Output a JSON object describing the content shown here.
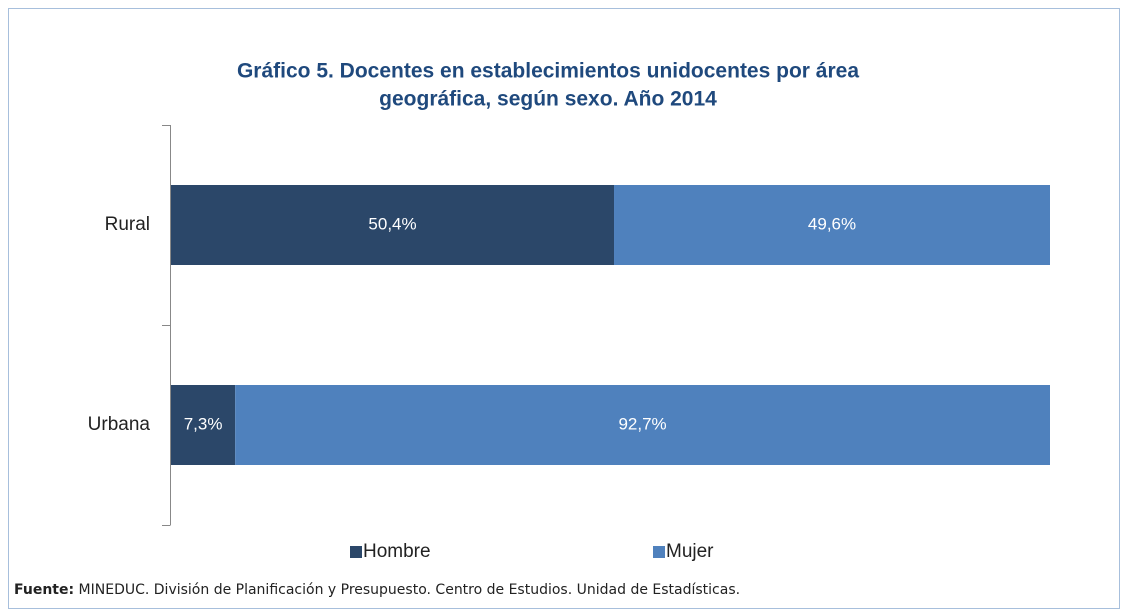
{
  "chart_data": {
    "type": "stacked-bar-horizontal",
    "title": [
      "Gráfico 5. Docentes en establecimientos unidocentes por área",
      "geográfica, según sexo.  Año 2014"
    ],
    "categories": [
      "Rural",
      "Urbana"
    ],
    "series": [
      {
        "name": "Hombre",
        "color": "#2b4769",
        "values": [
          50.4,
          7.3
        ],
        "value_labels": [
          "50,4%",
          "7,3%"
        ]
      },
      {
        "name": "Mujer",
        "color": "#4f81bd",
        "values": [
          49.6,
          92.7
        ],
        "value_labels": [
          "49,6%",
          "92,7%"
        ]
      }
    ],
    "legend": "bottom",
    "source_label": "Fuente:",
    "source": "MINEDUC. División de Planificación y Presupuesto. Centro de Estudios. Unidad de Estadísticas."
  }
}
